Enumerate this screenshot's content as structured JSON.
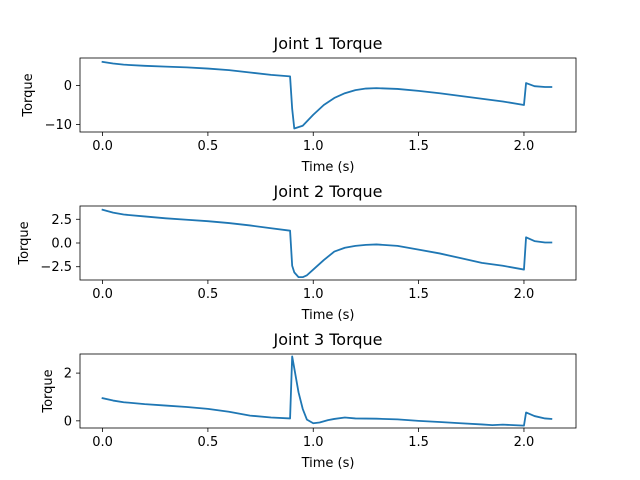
{
  "chart_data": [
    {
      "type": "line",
      "title": "Joint 1 Torque",
      "xlabel": "Time (s)",
      "ylabel": "Torque",
      "xlim": [
        -0.107,
        2.247
      ],
      "ylim": [
        -11.9,
        7.0
      ],
      "xticks": [
        0.0,
        0.5,
        1.0,
        1.5,
        2.0
      ],
      "xtick_labels": [
        "0.0",
        "0.5",
        "1.0",
        "1.5",
        "2.0"
      ],
      "yticks": [
        -10,
        0
      ],
      "ytick_labels": [
        "−10",
        "0"
      ],
      "color": "#1f77b4",
      "series": [
        {
          "x": [
            0.0,
            0.05,
            0.1,
            0.2,
            0.3,
            0.4,
            0.5,
            0.6,
            0.7,
            0.8,
            0.89,
            0.9,
            0.91,
            0.95,
            1.0,
            1.05,
            1.1,
            1.15,
            1.2,
            1.25,
            1.3,
            1.4,
            1.5,
            1.6,
            1.7,
            1.8,
            1.9,
            2.0,
            2.01,
            2.05,
            2.1,
            2.13
          ],
          "y": [
            6.0,
            5.6,
            5.3,
            5.0,
            4.8,
            4.6,
            4.3,
            3.9,
            3.3,
            2.7,
            2.3,
            -6.0,
            -11.0,
            -10.3,
            -7.5,
            -5.0,
            -3.2,
            -2.0,
            -1.2,
            -0.8,
            -0.7,
            -0.9,
            -1.4,
            -2.0,
            -2.7,
            -3.4,
            -4.1,
            -5.0,
            0.6,
            -0.2,
            -0.4,
            -0.4
          ]
        }
      ]
    },
    {
      "type": "line",
      "title": "Joint 2 Torque",
      "xlabel": "Time (s)",
      "ylabel": "Torque",
      "xlim": [
        -0.107,
        2.247
      ],
      "ylim": [
        -3.9,
        3.9
      ],
      "xticks": [
        0.0,
        0.5,
        1.0,
        1.5,
        2.0
      ],
      "xtick_labels": [
        "0.0",
        "0.5",
        "1.0",
        "1.5",
        "2.0"
      ],
      "yticks": [
        -2.5,
        0.0,
        2.5
      ],
      "ytick_labels": [
        "−2.5",
        "0.0",
        "2.5"
      ],
      "color": "#1f77b4",
      "series": [
        {
          "x": [
            0.0,
            0.05,
            0.1,
            0.2,
            0.3,
            0.4,
            0.5,
            0.6,
            0.7,
            0.8,
            0.89,
            0.9,
            0.91,
            0.93,
            0.95,
            0.97,
            1.0,
            1.05,
            1.1,
            1.15,
            1.2,
            1.25,
            1.3,
            1.4,
            1.5,
            1.6,
            1.7,
            1.8,
            1.9,
            2.0,
            2.01,
            2.05,
            2.1,
            2.13
          ],
          "y": [
            3.5,
            3.2,
            3.0,
            2.8,
            2.6,
            2.45,
            2.3,
            2.1,
            1.85,
            1.55,
            1.3,
            -2.4,
            -3.1,
            -3.6,
            -3.6,
            -3.4,
            -2.8,
            -1.8,
            -0.9,
            -0.5,
            -0.3,
            -0.2,
            -0.15,
            -0.3,
            -0.7,
            -1.1,
            -1.6,
            -2.1,
            -2.4,
            -2.8,
            0.6,
            0.2,
            0.05,
            0.05
          ]
        }
      ]
    },
    {
      "type": "line",
      "title": "Joint 3 Torque",
      "xlabel": "Time (s)",
      "ylabel": "Torque",
      "xlim": [
        -0.107,
        2.247
      ],
      "ylim": [
        -0.3,
        2.8
      ],
      "xticks": [
        0.0,
        0.5,
        1.0,
        1.5,
        2.0
      ],
      "xtick_labels": [
        "0.0",
        "0.5",
        "1.0",
        "1.5",
        "2.0"
      ],
      "yticks": [
        0,
        2
      ],
      "ytick_labels": [
        "0",
        "2"
      ],
      "color": "#1f77b4",
      "series": [
        {
          "x": [
            0.0,
            0.05,
            0.1,
            0.2,
            0.3,
            0.4,
            0.5,
            0.6,
            0.7,
            0.8,
            0.89,
            0.9,
            0.91,
            0.93,
            0.95,
            0.97,
            1.0,
            1.03,
            1.07,
            1.1,
            1.15,
            1.2,
            1.3,
            1.4,
            1.5,
            1.6,
            1.7,
            1.8,
            1.85,
            1.9,
            1.95,
            2.0,
            2.01,
            2.05,
            2.1,
            2.13
          ],
          "y": [
            0.95,
            0.85,
            0.78,
            0.7,
            0.64,
            0.58,
            0.5,
            0.38,
            0.22,
            0.14,
            0.1,
            2.7,
            2.2,
            1.2,
            0.5,
            0.05,
            -0.1,
            -0.07,
            0.03,
            0.08,
            0.14,
            0.1,
            0.09,
            0.06,
            0.0,
            -0.05,
            -0.1,
            -0.15,
            -0.18,
            -0.16,
            -0.18,
            -0.2,
            0.35,
            0.2,
            0.1,
            0.08
          ]
        }
      ]
    }
  ]
}
